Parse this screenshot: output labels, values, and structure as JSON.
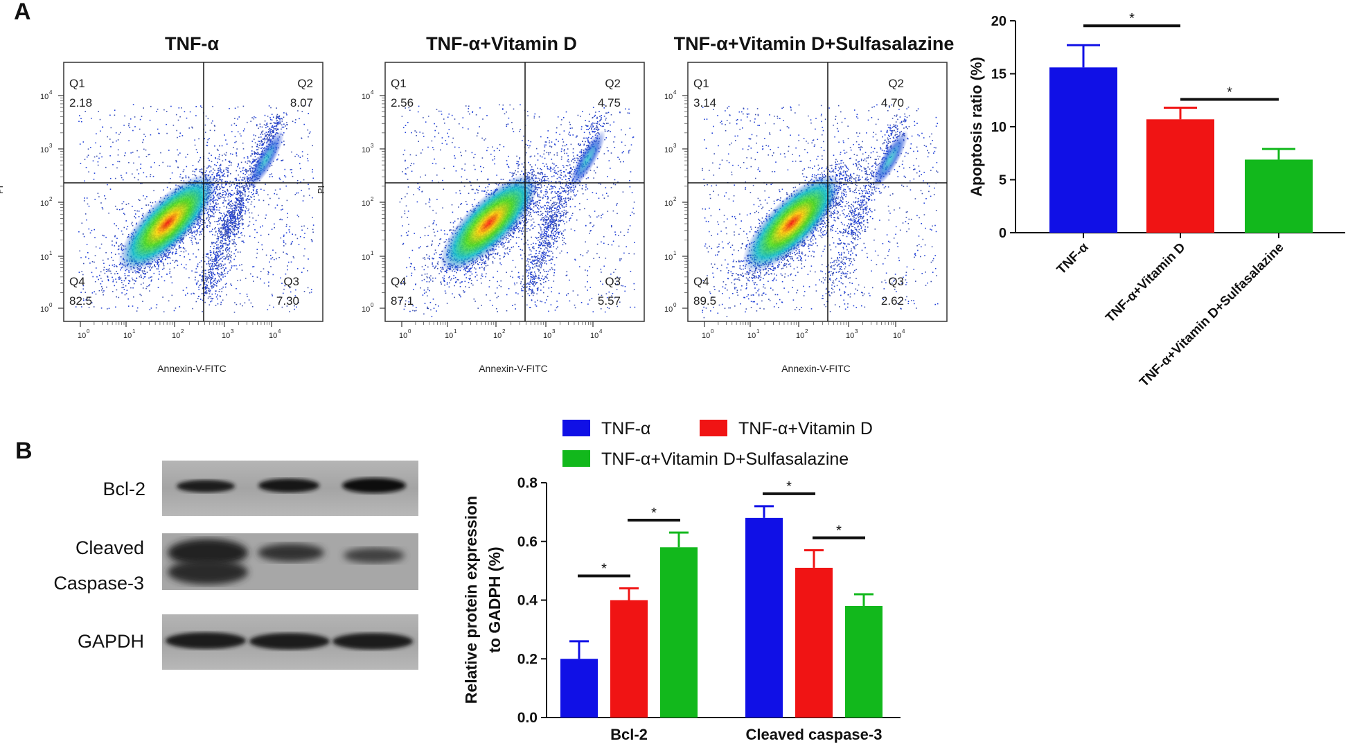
{
  "panels": {
    "a": "A",
    "b": "B"
  },
  "colors": {
    "tnf": "#1010e6",
    "vitd": "#f01414",
    "sulfa": "#12b81c"
  },
  "flow": {
    "y_label": "PI",
    "x_label": "Annexin-V-FITC",
    "tick_base": "10",
    "tick_exponents": [
      "0",
      "1",
      "2",
      "3",
      "4"
    ],
    "plots": [
      {
        "title": "TNF-α",
        "quadrants": [
          {
            "name": "Q1",
            "value": "2.18"
          },
          {
            "name": "Q2",
            "value": "8.07"
          },
          {
            "name": "Q3",
            "value": "7.30"
          },
          {
            "name": "Q4",
            "value": "82.5"
          }
        ]
      },
      {
        "title": "TNF-α+Vitamin D",
        "quadrants": [
          {
            "name": "Q1",
            "value": "2.56"
          },
          {
            "name": "Q2",
            "value": "4.75"
          },
          {
            "name": "Q3",
            "value": "5.57"
          },
          {
            "name": "Q4",
            "value": "87.1"
          }
        ]
      },
      {
        "title": "TNF-α+Vitamin D+Sulfasalazine",
        "quadrants": [
          {
            "name": "Q1",
            "value": "3.14"
          },
          {
            "name": "Q2",
            "value": "4.70"
          },
          {
            "name": "Q3",
            "value": "2.62"
          },
          {
            "name": "Q4",
            "value": "89.5"
          }
        ]
      }
    ]
  },
  "western": {
    "rows": [
      {
        "label": "Bcl-2"
      },
      {
        "label_lines": [
          "Cleaved",
          "Caspase-3"
        ]
      },
      {
        "label": "GAPDH"
      }
    ]
  },
  "chart_data": [
    {
      "type": "bar",
      "ylabel": "Apoptosis ratio (%)",
      "categories": [
        "TNF-α",
        "TNF-α+Vitamin D",
        "TNF-α+Vitamin D+Sulfasalazine"
      ],
      "values": [
        15.6,
        10.7,
        6.9
      ],
      "errors": [
        2.1,
        1.1,
        1.0
      ],
      "ylim": [
        0,
        20
      ],
      "yticks": [
        0,
        5,
        10,
        15,
        20
      ],
      "significance": [
        {
          "from": 0,
          "to": 1,
          "label": "*"
        },
        {
          "from": 1,
          "to": 2,
          "label": "*"
        }
      ]
    },
    {
      "type": "bar",
      "ylabel_lines": [
        "Relative protein expression",
        "to GADPH (%)"
      ],
      "categories": [
        "Bcl-2",
        "Cleaved caspase-3"
      ],
      "series": [
        {
          "name": "TNF-α",
          "values": [
            0.2,
            0.68
          ],
          "errors": [
            0.06,
            0.04
          ]
        },
        {
          "name": "TNF-α+Vitamin D",
          "values": [
            0.4,
            0.51
          ],
          "errors": [
            0.04,
            0.06
          ]
        },
        {
          "name": "TNF-α+Vitamin D+Sulfasalazine",
          "values": [
            0.58,
            0.38
          ],
          "errors": [
            0.05,
            0.04
          ]
        }
      ],
      "ylim": [
        0,
        0.8
      ],
      "yticks": [
        "0.0",
        "0.2",
        "0.4",
        "0.6",
        "0.8"
      ],
      "legend": "top",
      "significance": [
        {
          "group": 0,
          "from": 0,
          "to": 1,
          "label": "*"
        },
        {
          "group": 0,
          "from": 1,
          "to": 2,
          "label": "*"
        },
        {
          "group": 1,
          "from": 0,
          "to": 1,
          "label": "*"
        },
        {
          "group": 1,
          "from": 1,
          "to": 2,
          "label": "*"
        }
      ]
    }
  ]
}
